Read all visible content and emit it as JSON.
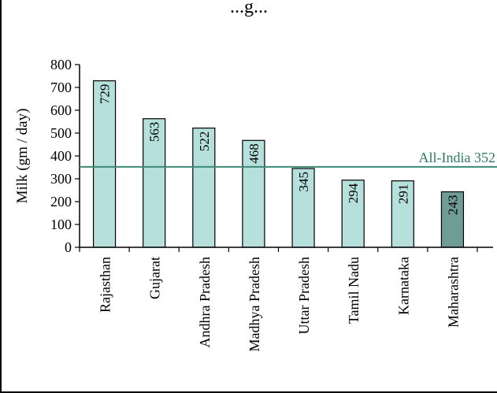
{
  "chart_data": {
    "type": "bar",
    "title": "...g...",
    "ylabel": "Milk (gm / day)",
    "xlabel": "",
    "ylim": [
      0,
      800
    ],
    "yticks": [
      "0",
      "100",
      "200",
      "300",
      "400",
      "500",
      "600",
      "700",
      "800"
    ],
    "categories": [
      "Rajasthan",
      "Gujarat",
      "Andhra Pradesh",
      "Madhya Pradesh",
      "Uttar Pradesh",
      "Tamil Nadu",
      "Karnataka",
      "Maharashtra"
    ],
    "values": [
      729,
      563,
      522,
      468,
      345,
      294,
      291,
      243
    ],
    "value_labels": [
      "729",
      "563",
      "522",
      "468",
      "345",
      "294",
      "291",
      "243"
    ],
    "highlight_category": "Maharashtra",
    "reference_line": {
      "label": "All-India 352",
      "value": 352
    },
    "grid": false,
    "colors": {
      "bar": "#b6e0dc",
      "highlight_bar": "#6f9d95",
      "reference_line": "#3f8a76",
      "reference_text": "#2f7a63"
    }
  }
}
